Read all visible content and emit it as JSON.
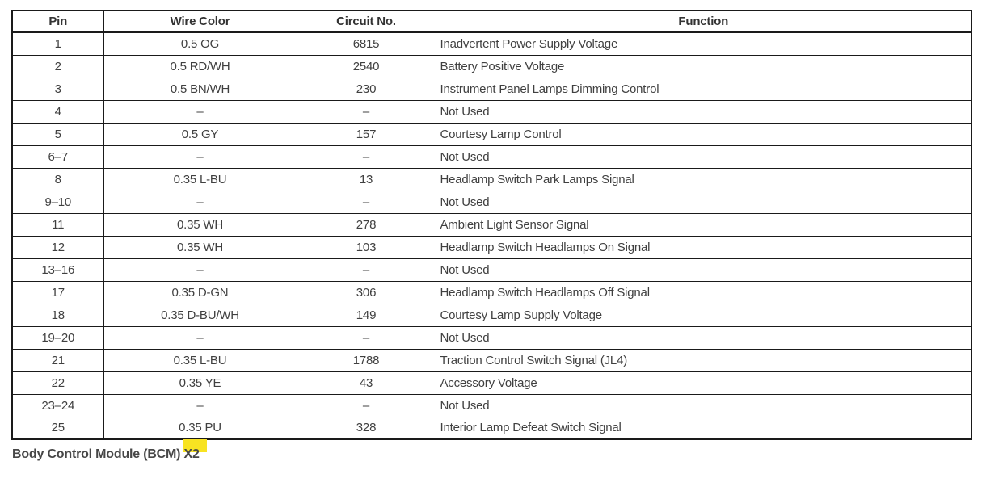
{
  "table": {
    "columns": [
      "Pin",
      "Wire Color",
      "Circuit No.",
      "Function"
    ],
    "rows": [
      {
        "pin": "1",
        "wire_color": "0.5 OG",
        "circuit_no": "6815",
        "function": "Inadvertent Power Supply Voltage"
      },
      {
        "pin": "2",
        "wire_color": "0.5 RD/WH",
        "circuit_no": "2540",
        "function": "Battery Positive Voltage"
      },
      {
        "pin": "3",
        "wire_color": "0.5 BN/WH",
        "circuit_no": "230",
        "function": "Instrument Panel Lamps Dimming Control"
      },
      {
        "pin": "4",
        "wire_color": "–",
        "circuit_no": "–",
        "function": "Not Used"
      },
      {
        "pin": "5",
        "wire_color": "0.5 GY",
        "circuit_no": "157",
        "function": "Courtesy Lamp Control"
      },
      {
        "pin": "6–7",
        "wire_color": "–",
        "circuit_no": "–",
        "function": "Not Used"
      },
      {
        "pin": "8",
        "wire_color": "0.35 L-BU",
        "circuit_no": "13",
        "function": "Headlamp Switch Park Lamps Signal"
      },
      {
        "pin": "9–10",
        "wire_color": "–",
        "circuit_no": "–",
        "function": "Not Used"
      },
      {
        "pin": "11",
        "wire_color": "0.35 WH",
        "circuit_no": "278",
        "function": "Ambient Light Sensor Signal"
      },
      {
        "pin": "12",
        "wire_color": "0.35 WH",
        "circuit_no": "103",
        "function": "Headlamp Switch Headlamps On Signal"
      },
      {
        "pin": "13–16",
        "wire_color": "–",
        "circuit_no": "–",
        "function": "Not Used"
      },
      {
        "pin": "17",
        "wire_color": "0.35 D-GN",
        "circuit_no": "306",
        "function": "Headlamp Switch Headlamps Off Signal"
      },
      {
        "pin": "18",
        "wire_color": "0.35 D-BU/WH",
        "circuit_no": "149",
        "function": "Courtesy Lamp Supply Voltage"
      },
      {
        "pin": "19–20",
        "wire_color": "–",
        "circuit_no": "–",
        "function": "Not Used"
      },
      {
        "pin": "21",
        "wire_color": "0.35 L-BU",
        "circuit_no": "1788",
        "function": "Traction Control Switch Signal (JL4)"
      },
      {
        "pin": "22",
        "wire_color": "0.35 YE",
        "circuit_no": "43",
        "function": "Accessory Voltage"
      },
      {
        "pin": "23–24",
        "wire_color": "–",
        "circuit_no": "–",
        "function": "Not Used"
      },
      {
        "pin": "25",
        "wire_color": "0.35 PU",
        "circuit_no": "328",
        "function": "Interior Lamp Defeat Switch Signal"
      }
    ]
  },
  "caption": {
    "prefix": "Body Control Module (BCM) ",
    "highlighted": "X2"
  },
  "colors": {
    "highlight": "#f8e322",
    "border": "#1a1a1a",
    "text": "#404040"
  }
}
